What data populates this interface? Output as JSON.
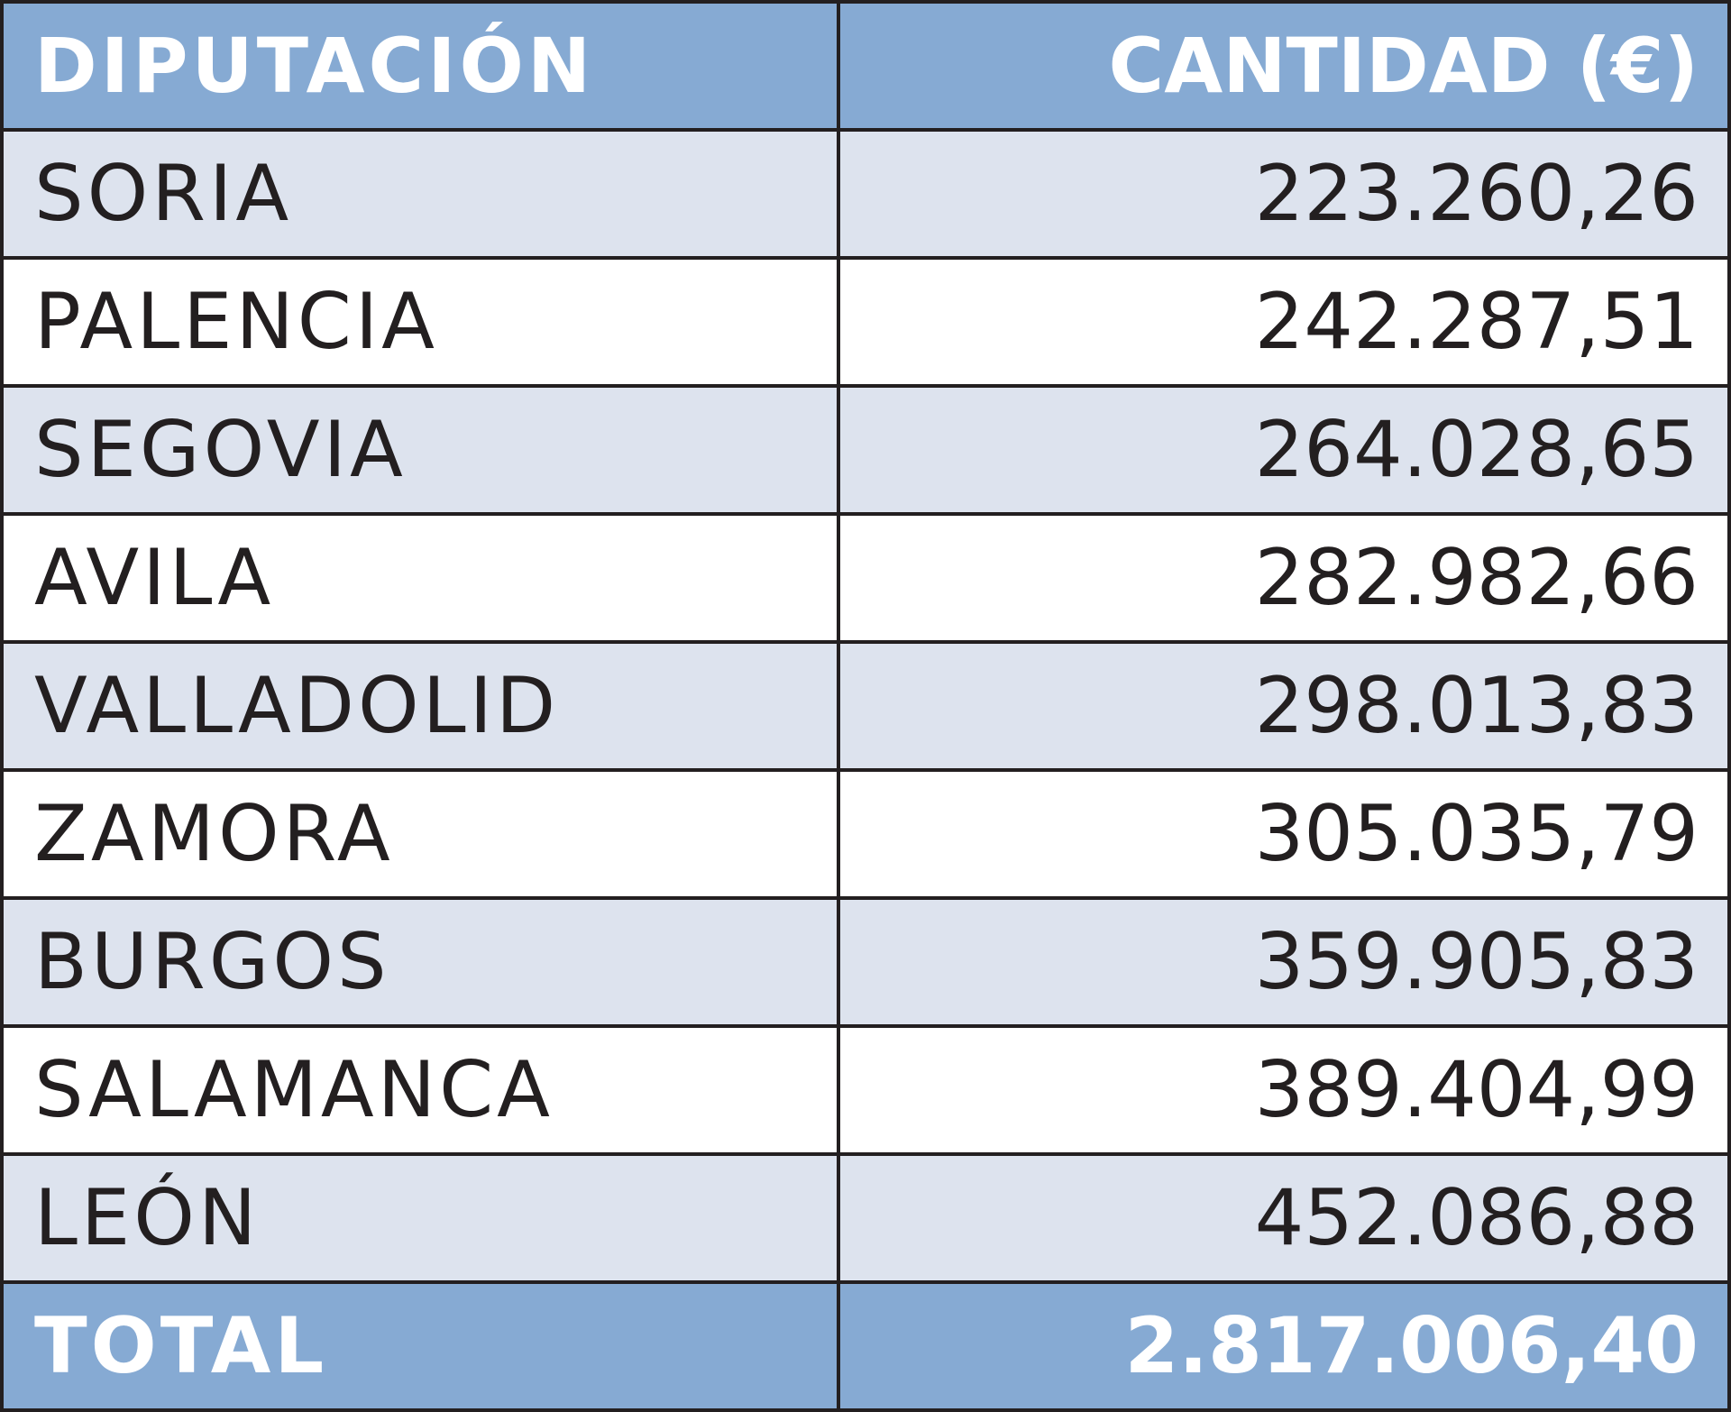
{
  "header": {
    "col_name": "DIPUTACIÓN",
    "col_amount": "CANTIDAD (€)"
  },
  "rows": [
    {
      "name": "SORIA",
      "amount": "223.260,26"
    },
    {
      "name": "PALENCIA",
      "amount": "242.287,51"
    },
    {
      "name": "SEGOVIA",
      "amount": "264.028,65"
    },
    {
      "name": "AVILA",
      "amount": "282.982,66"
    },
    {
      "name": "VALLADOLID",
      "amount": "298.013,83"
    },
    {
      "name": "ZAMORA",
      "amount": "305.035,79"
    },
    {
      "name": "BURGOS",
      "amount": "359.905,83"
    },
    {
      "name": "SALAMANCA",
      "amount": "389.404,99"
    },
    {
      "name": "LEÓN",
      "amount": "452.086,88"
    }
  ],
  "total": {
    "label": "TOTAL",
    "amount": "2.817.006,40"
  },
  "colors": {
    "header_bg": "#86aad3",
    "stripe_bg": "#dde3ee",
    "border": "#231f20"
  }
}
